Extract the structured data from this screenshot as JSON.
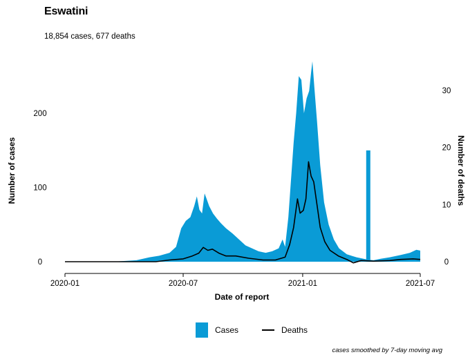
{
  "title": "Eswatini",
  "subtitle": "18,854 cases, 677 deaths",
  "footnote": "cases smoothed by 7-day moving avg",
  "legend": {
    "cases_label": "Cases",
    "deaths_label": "Deaths"
  },
  "colors": {
    "cases": "#0a9bd6",
    "deaths": "#000000"
  },
  "chart_data": {
    "type": "area",
    "xlabel": "Date of report",
    "ylabel_left": "Number of cases",
    "ylabel_right": "Number of deaths",
    "x_ticks": [
      "2020-01",
      "2020-07",
      "2021-01",
      "2021-07"
    ],
    "x_range": [
      "2020-01-01",
      "2021-07-01"
    ],
    "y_left_ticks": [
      0,
      100,
      200
    ],
    "y_left_range": [
      0,
      270
    ],
    "y_right_ticks": [
      0,
      10,
      20,
      30
    ],
    "y_right_range": [
      0,
      32.5
    ],
    "series": [
      {
        "name": "Cases",
        "axis": "left",
        "style": "filled-area",
        "points": [
          [
            "2020-01-01",
            0
          ],
          [
            "2020-03-15",
            0
          ],
          [
            "2020-04-20",
            2
          ],
          [
            "2020-05-10",
            6
          ],
          [
            "2020-05-25",
            8
          ],
          [
            "2020-06-10",
            12
          ],
          [
            "2020-06-20",
            20
          ],
          [
            "2020-06-28",
            45
          ],
          [
            "2020-07-05",
            55
          ],
          [
            "2020-07-12",
            60
          ],
          [
            "2020-07-18",
            75
          ],
          [
            "2020-07-22",
            88
          ],
          [
            "2020-07-26",
            70
          ],
          [
            "2020-07-30",
            65
          ],
          [
            "2020-08-03",
            92
          ],
          [
            "2020-08-06",
            85
          ],
          [
            "2020-08-10",
            75
          ],
          [
            "2020-08-16",
            65
          ],
          [
            "2020-08-22",
            58
          ],
          [
            "2020-08-28",
            52
          ],
          [
            "2020-09-05",
            45
          ],
          [
            "2020-09-15",
            38
          ],
          [
            "2020-09-25",
            30
          ],
          [
            "2020-10-05",
            22
          ],
          [
            "2020-10-15",
            18
          ],
          [
            "2020-10-25",
            14
          ],
          [
            "2020-11-05",
            12
          ],
          [
            "2020-11-15",
            14
          ],
          [
            "2020-11-25",
            18
          ],
          [
            "2020-12-01",
            30
          ],
          [
            "2020-12-05",
            20
          ],
          [
            "2020-12-10",
            60
          ],
          [
            "2020-12-14",
            110
          ],
          [
            "2020-12-18",
            160
          ],
          [
            "2020-12-22",
            200
          ],
          [
            "2020-12-26",
            250
          ],
          [
            "2020-12-30",
            245
          ],
          [
            "2021-01-03",
            200
          ],
          [
            "2021-01-07",
            220
          ],
          [
            "2021-01-11",
            230
          ],
          [
            "2021-01-14",
            255
          ],
          [
            "2021-01-16",
            270
          ],
          [
            "2021-01-19",
            235
          ],
          [
            "2021-01-23",
            190
          ],
          [
            "2021-01-28",
            130
          ],
          [
            "2021-02-03",
            80
          ],
          [
            "2021-02-10",
            50
          ],
          [
            "2021-02-18",
            30
          ],
          [
            "2021-02-26",
            18
          ],
          [
            "2021-03-10",
            10
          ],
          [
            "2021-03-25",
            6
          ],
          [
            "2021-04-10",
            3
          ],
          [
            "2021-04-20",
            2
          ],
          [
            "2021-05-01",
            4
          ],
          [
            "2021-05-15",
            6
          ],
          [
            "2021-06-01",
            9
          ],
          [
            "2021-06-15",
            12
          ],
          [
            "2021-06-25",
            16
          ],
          [
            "2021-07-01",
            15
          ]
        ],
        "spike": {
          "date": "2021-04-12",
          "value": 150
        }
      },
      {
        "name": "Deaths",
        "axis": "right",
        "style": "line",
        "points": [
          [
            "2020-01-01",
            0
          ],
          [
            "2020-05-20",
            0
          ],
          [
            "2020-06-10",
            0.3
          ],
          [
            "2020-07-01",
            0.5
          ],
          [
            "2020-07-15",
            1
          ],
          [
            "2020-07-25",
            1.5
          ],
          [
            "2020-08-01",
            2.5
          ],
          [
            "2020-08-08",
            2.0
          ],
          [
            "2020-08-15",
            2.2
          ],
          [
            "2020-08-25",
            1.5
          ],
          [
            "2020-09-05",
            1.0
          ],
          [
            "2020-09-20",
            1.0
          ],
          [
            "2020-10-10",
            0.6
          ],
          [
            "2020-11-01",
            0.3
          ],
          [
            "2020-11-20",
            0.3
          ],
          [
            "2020-12-05",
            0.8
          ],
          [
            "2020-12-12",
            3
          ],
          [
            "2020-12-18",
            6
          ],
          [
            "2020-12-24",
            11
          ],
          [
            "2020-12-28",
            8.5
          ],
          [
            "2021-01-02",
            9
          ],
          [
            "2021-01-06",
            11
          ],
          [
            "2021-01-10",
            17.5
          ],
          [
            "2021-01-14",
            15
          ],
          [
            "2021-01-18",
            14
          ],
          [
            "2021-01-23",
            10
          ],
          [
            "2021-01-28",
            6
          ],
          [
            "2021-02-04",
            3.5
          ],
          [
            "2021-02-12",
            2.0
          ],
          [
            "2021-02-25",
            1.0
          ],
          [
            "2021-03-10",
            0.4
          ],
          [
            "2021-03-20",
            -0.2
          ],
          [
            "2021-04-01",
            0.2
          ],
          [
            "2021-04-20",
            0.1
          ],
          [
            "2021-05-15",
            0.2
          ],
          [
            "2021-06-01",
            0.4
          ],
          [
            "2021-06-20",
            0.5
          ],
          [
            "2021-07-01",
            0.4
          ]
        ]
      }
    ]
  }
}
